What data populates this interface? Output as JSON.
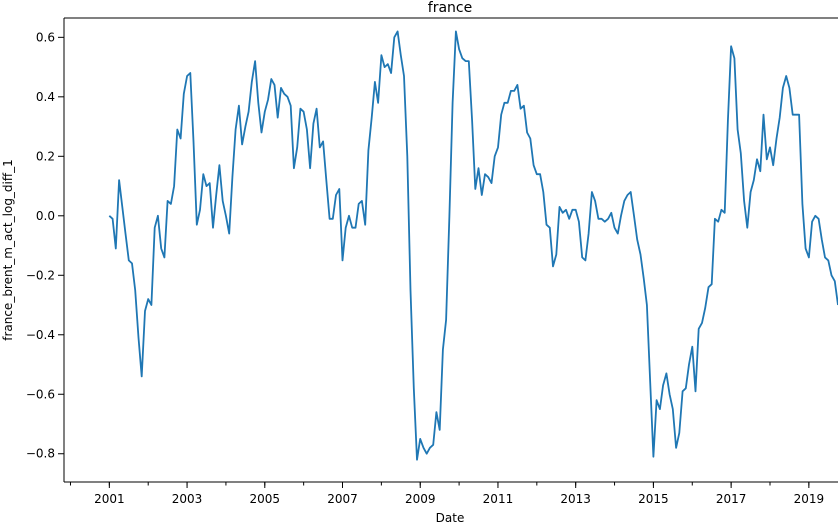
{
  "chart_data": {
    "type": "line",
    "title": "france",
    "xlabel": "Date",
    "ylabel": "france_brent_m_act_log_diff_1",
    "grid": false,
    "legend": "none",
    "x_range": [
      "1999-11",
      "2019-10"
    ],
    "ylim": [
      -0.895,
      0.665
    ],
    "x_ticks": [
      "2001",
      "2003",
      "2005",
      "2007",
      "2009",
      "2011",
      "2013",
      "2015",
      "2017",
      "2019"
    ],
    "y_ticks": [
      "−0.8",
      "−0.6",
      "−0.4",
      "−0.2",
      "0.0",
      "0.2",
      "0.4",
      "0.6"
    ],
    "line_color": "#1f77b4",
    "series": [
      {
        "start": "2001-01",
        "frequency": "monthly",
        "values": [
          0.0,
          -0.01,
          -0.11,
          0.12,
          0.03,
          -0.06,
          -0.15,
          -0.16,
          -0.25,
          -0.41,
          -0.54,
          -0.32,
          -0.28,
          -0.3,
          -0.04,
          0.0,
          -0.11,
          -0.14,
          0.05,
          0.04,
          0.1,
          0.29,
          0.26,
          0.41,
          0.47,
          0.48,
          0.25,
          -0.03,
          0.02,
          0.14,
          0.1,
          0.11,
          -0.04,
          0.07,
          0.17,
          0.05,
          0.0,
          -0.06,
          0.13,
          0.29,
          0.37,
          0.24,
          0.3,
          0.35,
          0.45,
          0.52,
          0.38,
          0.28,
          0.35,
          0.39,
          0.46,
          0.44,
          0.33,
          0.43,
          0.41,
          0.4,
          0.37,
          0.16,
          0.23,
          0.36,
          0.35,
          0.29,
          0.16,
          0.31,
          0.36,
          0.23,
          0.25,
          0.12,
          -0.01,
          -0.01,
          0.07,
          0.09,
          -0.15,
          -0.04,
          0.0,
          -0.04,
          -0.04,
          0.04,
          0.05,
          -0.03,
          0.22,
          0.33,
          0.45,
          0.38,
          0.54,
          0.5,
          0.51,
          0.48,
          0.6,
          0.62,
          0.54,
          0.47,
          0.2,
          -0.25,
          -0.58,
          -0.82,
          -0.75,
          -0.78,
          -0.8,
          -0.78,
          -0.77,
          -0.66,
          -0.72,
          -0.45,
          -0.35,
          0.0,
          0.38,
          0.62,
          0.56,
          0.53,
          0.52,
          0.52,
          0.32,
          0.09,
          0.16,
          0.07,
          0.14,
          0.13,
          0.11,
          0.2,
          0.23,
          0.34,
          0.38,
          0.38,
          0.42,
          0.42,
          0.44,
          0.36,
          0.37,
          0.28,
          0.26,
          0.17,
          0.14,
          0.14,
          0.08,
          -0.03,
          -0.04,
          -0.17,
          -0.13,
          0.03,
          0.01,
          0.02,
          -0.01,
          0.02,
          0.02,
          -0.02,
          -0.14,
          -0.15,
          -0.06,
          0.08,
          0.05,
          -0.01,
          -0.01,
          -0.02,
          -0.01,
          0.01,
          -0.04,
          -0.06,
          0.0,
          0.05,
          0.07,
          0.08,
          0.0,
          -0.08,
          -0.13,
          -0.21,
          -0.3,
          -0.56,
          -0.81,
          -0.62,
          -0.65,
          -0.57,
          -0.53,
          -0.6,
          -0.65,
          -0.78,
          -0.73,
          -0.59,
          -0.58,
          -0.5,
          -0.44,
          -0.59,
          -0.38,
          -0.36,
          -0.31,
          -0.24,
          -0.23,
          -0.01,
          -0.02,
          0.02,
          0.01,
          0.32,
          0.57,
          0.53,
          0.29,
          0.21,
          0.05,
          -0.04,
          0.08,
          0.12,
          0.19,
          0.15,
          0.34,
          0.19,
          0.23,
          0.17,
          0.26,
          0.33,
          0.43,
          0.47,
          0.43,
          0.34,
          0.34,
          0.34,
          0.04,
          -0.11,
          -0.14,
          -0.02,
          0.0,
          -0.01,
          -0.08,
          -0.14,
          -0.15,
          -0.2,
          -0.22,
          -0.3
        ]
      }
    ]
  }
}
